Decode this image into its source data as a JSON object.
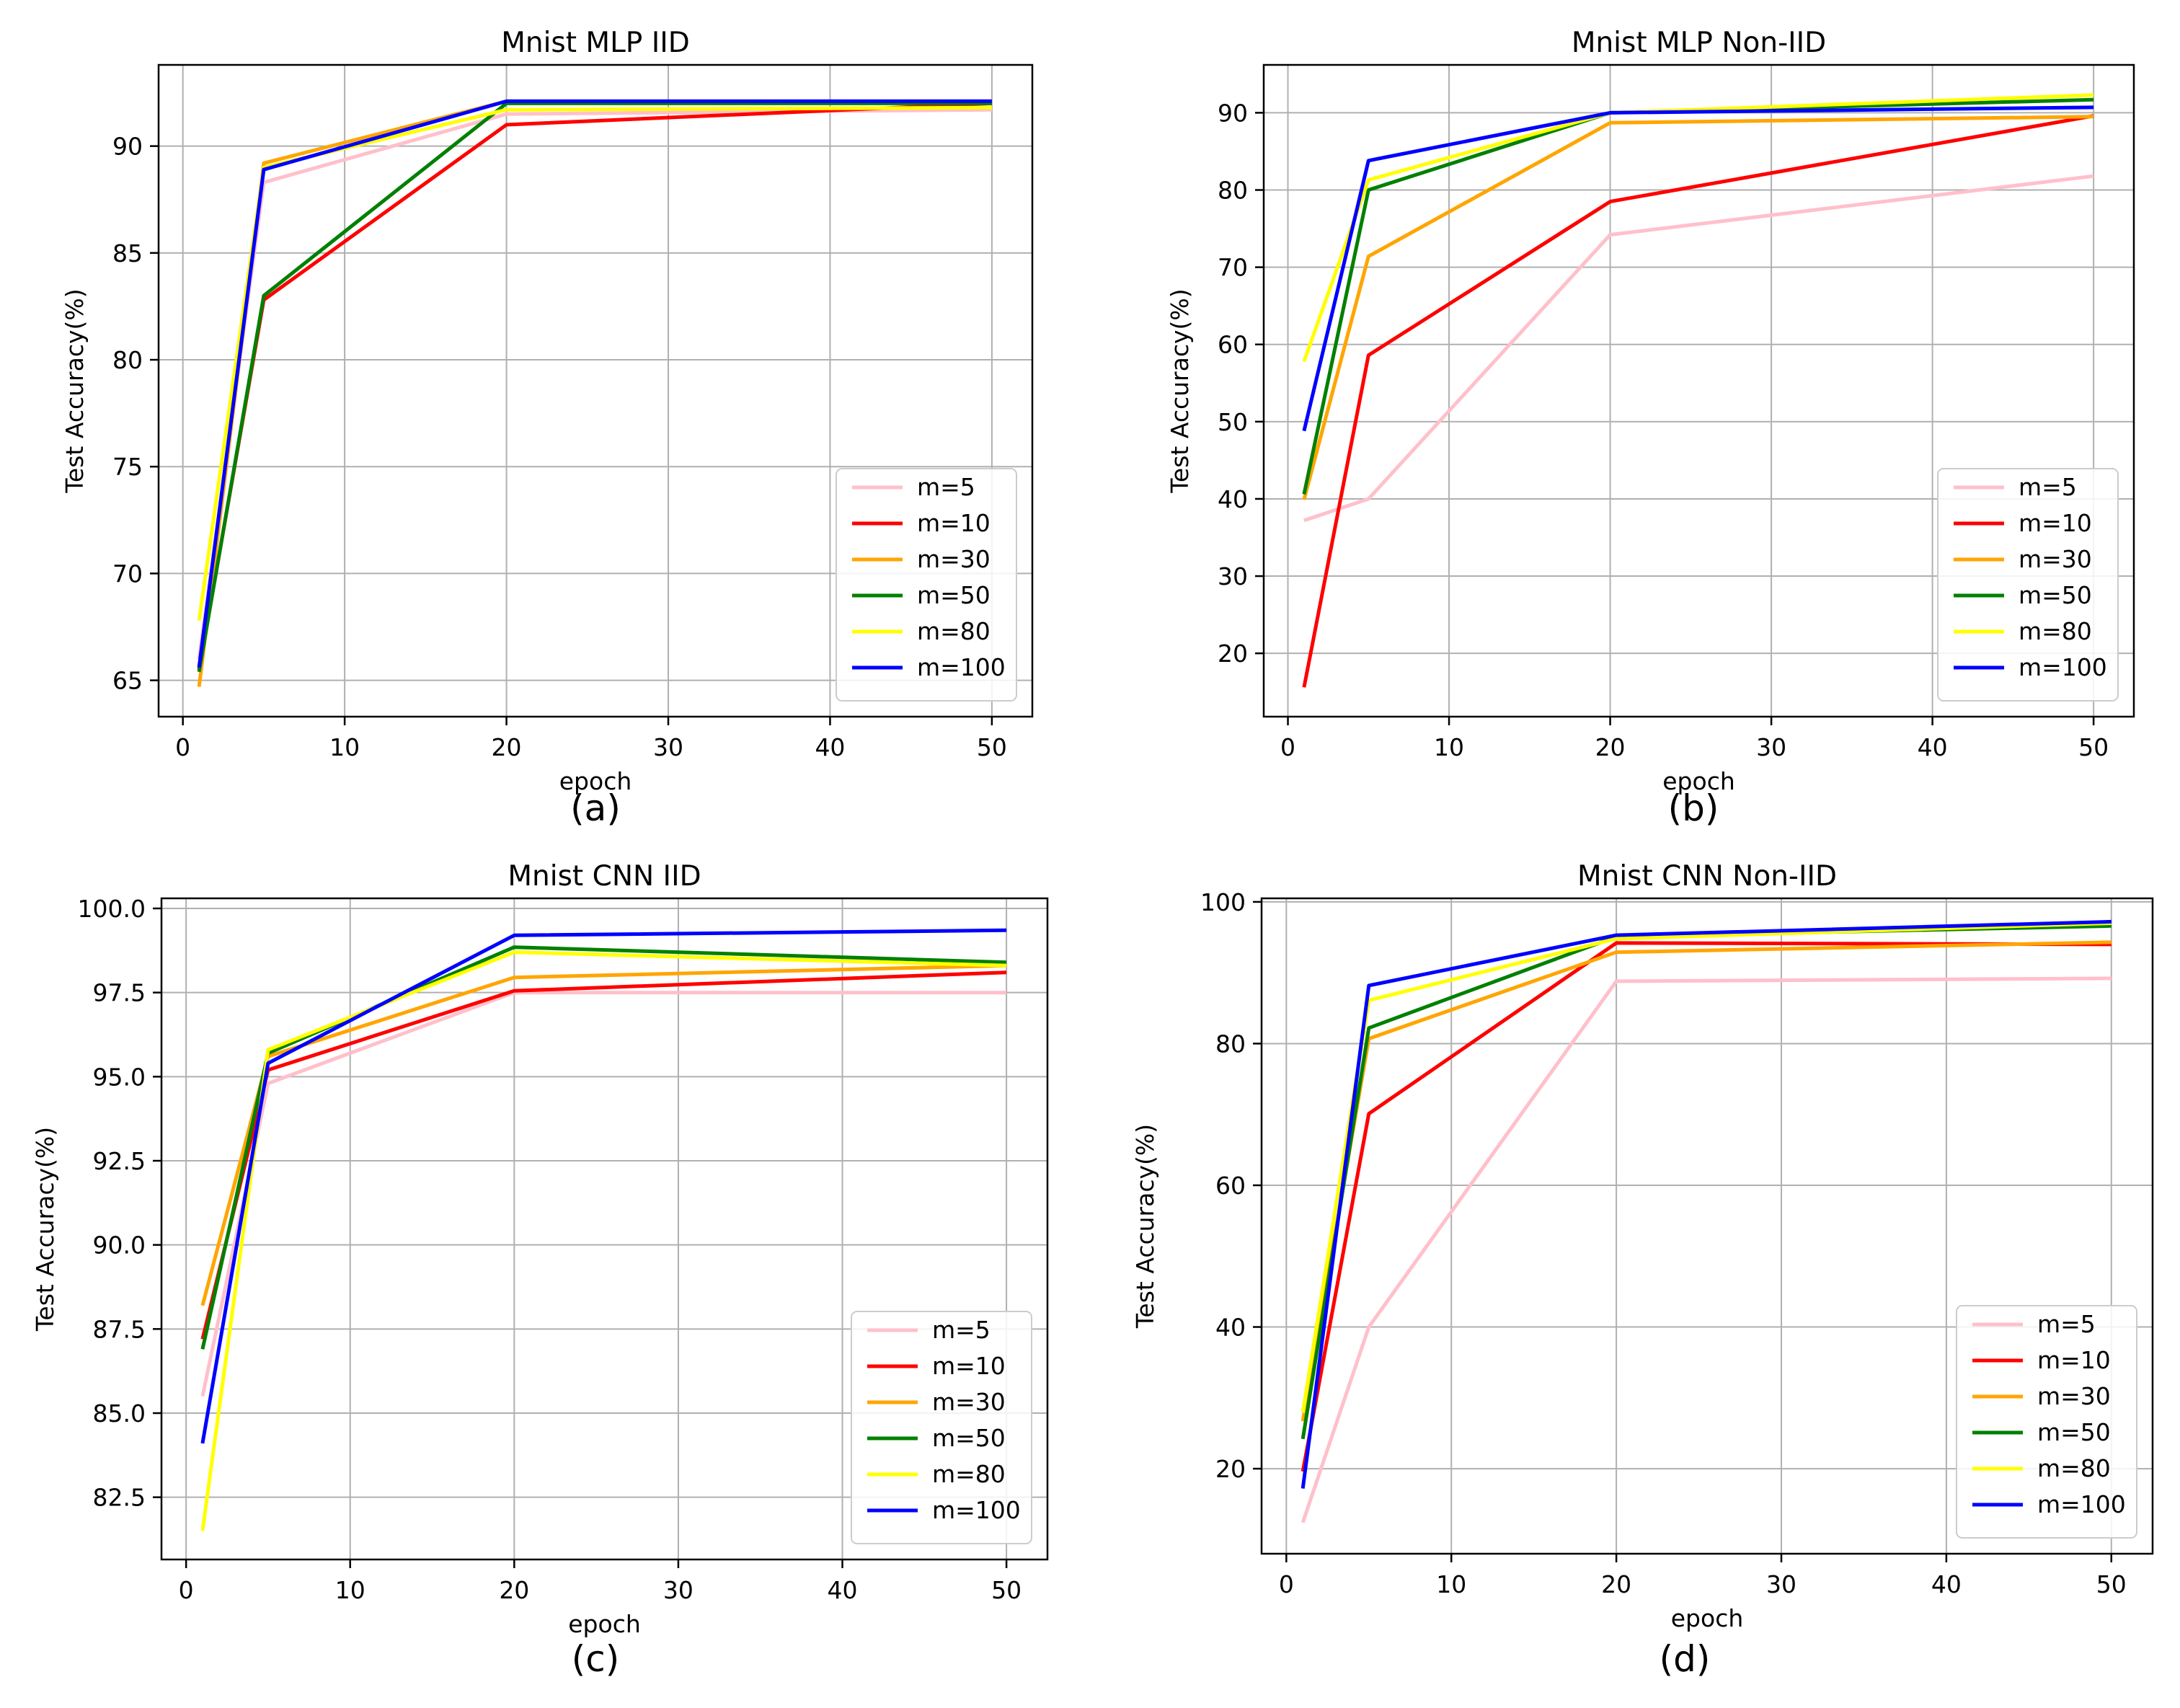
{
  "figure": {
    "colors": {
      "m=5": "#ffc0cb",
      "m=10": "#ff0000",
      "m=30": "#ffa500",
      "m=50": "#008000",
      "m=80": "#ffff00",
      "m=100": "#0000ff"
    }
  },
  "chart_data": [
    {
      "type": "line",
      "title": "Mnist MLP IID",
      "caption": "(a)",
      "xlabel": "epoch",
      "ylabel": "Test Accuracy(%)",
      "x": [
        1,
        5,
        20,
        50
      ],
      "xlim": [
        -1.5,
        52.5
      ],
      "ylim": [
        63.3,
        93.8
      ],
      "xticks": [
        0,
        10,
        20,
        30,
        40,
        50
      ],
      "xtick_labels": [
        "0",
        "10",
        "20",
        "30",
        "40",
        "50"
      ],
      "yticks": [
        65,
        70,
        75,
        80,
        85,
        90
      ],
      "ytick_labels": [
        "65",
        "70",
        "75",
        "80",
        "85",
        "90"
      ],
      "grid": true,
      "legend_position": "bottom-right",
      "series": [
        {
          "name": "m=5",
          "values": [
            66.0,
            88.3,
            91.5,
            91.7
          ]
        },
        {
          "name": "m=10",
          "values": [
            65.5,
            82.8,
            91.0,
            92.0
          ]
        },
        {
          "name": "m=30",
          "values": [
            64.7,
            89.2,
            92.1,
            92.1
          ]
        },
        {
          "name": "m=50",
          "values": [
            65.4,
            83.0,
            92.0,
            92.0
          ]
        },
        {
          "name": "m=80",
          "values": [
            67.8,
            89.0,
            91.7,
            91.8
          ]
        },
        {
          "name": "m=100",
          "values": [
            65.6,
            88.9,
            92.1,
            92.1
          ]
        }
      ]
    },
    {
      "type": "line",
      "title": "Mnist MLP Non-IID",
      "caption": "(b)",
      "xlabel": "epoch",
      "ylabel": "Test Accuracy(%)",
      "x": [
        1,
        5,
        20,
        50
      ],
      "xlim": [
        -1.5,
        52.5
      ],
      "ylim": [
        11.8,
        96.2
      ],
      "xticks": [
        0,
        10,
        20,
        30,
        40,
        50
      ],
      "xtick_labels": [
        "0",
        "10",
        "20",
        "30",
        "40",
        "50"
      ],
      "yticks": [
        20,
        30,
        40,
        50,
        60,
        70,
        80,
        90
      ],
      "ytick_labels": [
        "20",
        "30",
        "40",
        "50",
        "60",
        "70",
        "80",
        "90"
      ],
      "grid": true,
      "legend_position": "bottom-right",
      "series": [
        {
          "name": "m=5",
          "values": [
            37.2,
            40.0,
            74.2,
            81.8
          ]
        },
        {
          "name": "m=10",
          "values": [
            15.6,
            58.6,
            78.5,
            89.6
          ]
        },
        {
          "name": "m=30",
          "values": [
            39.9,
            71.4,
            88.7,
            89.5
          ]
        },
        {
          "name": "m=50",
          "values": [
            40.6,
            80.0,
            90.0,
            91.7
          ]
        },
        {
          "name": "m=80",
          "values": [
            57.8,
            81.3,
            90.0,
            92.3
          ]
        },
        {
          "name": "m=100",
          "values": [
            48.8,
            83.8,
            90.0,
            90.7
          ]
        }
      ]
    },
    {
      "type": "line",
      "title": "Mnist CNN IID",
      "caption": "(c)",
      "xlabel": "epoch",
      "ylabel": "Test Accuracy(%)",
      "x": [
        1,
        5,
        20,
        50
      ],
      "xlim": [
        -1.5,
        52.5
      ],
      "ylim": [
        80.65,
        100.3
      ],
      "xticks": [
        0,
        10,
        20,
        30,
        40,
        50
      ],
      "xtick_labels": [
        "0",
        "10",
        "20",
        "30",
        "40",
        "50"
      ],
      "yticks": [
        82.5,
        85.0,
        87.5,
        90.0,
        92.5,
        95.0,
        97.5,
        100.0
      ],
      "ytick_labels": [
        "82.5",
        "85.0",
        "87.5",
        "90.0",
        "92.5",
        "95.0",
        "97.5",
        "100.0"
      ],
      "grid": true,
      "legend_position": "bottom-right",
      "series": [
        {
          "name": "m=5",
          "values": [
            85.5,
            94.8,
            97.5,
            97.5
          ]
        },
        {
          "name": "m=10",
          "values": [
            87.2,
            95.2,
            97.55,
            98.1
          ]
        },
        {
          "name": "m=30",
          "values": [
            88.2,
            95.6,
            97.95,
            98.3
          ]
        },
        {
          "name": "m=50",
          "values": [
            86.9,
            95.7,
            98.85,
            98.4
          ]
        },
        {
          "name": "m=80",
          "values": [
            81.5,
            95.8,
            98.7,
            98.3
          ]
        },
        {
          "name": "m=100",
          "values": [
            84.1,
            95.4,
            99.2,
            99.35
          ]
        }
      ]
    },
    {
      "type": "line",
      "title": "Mnist CNN Non-IID",
      "caption": "(d)",
      "xlabel": "epoch",
      "ylabel": "Test Accuracy(%)",
      "x": [
        1,
        5,
        20,
        50
      ],
      "xlim": [
        -1.5,
        52.5
      ],
      "ylim": [
        8.0,
        100.5
      ],
      "xticks": [
        0,
        10,
        20,
        30,
        40,
        50
      ],
      "xtick_labels": [
        "0",
        "10",
        "20",
        "30",
        "40",
        "50"
      ],
      "yticks": [
        20,
        40,
        60,
        80,
        100
      ],
      "ytick_labels": [
        "20",
        "40",
        "60",
        "80",
        "100"
      ],
      "grid": true,
      "legend_position": "bottom-right",
      "series": [
        {
          "name": "m=5",
          "values": [
            12.4,
            40.0,
            88.8,
            89.2
          ]
        },
        {
          "name": "m=10",
          "values": [
            19.6,
            70.1,
            94.2,
            94.0
          ]
        },
        {
          "name": "m=30",
          "values": [
            26.7,
            80.7,
            92.9,
            94.3
          ]
        },
        {
          "name": "m=50",
          "values": [
            24.2,
            82.2,
            95.1,
            96.6
          ]
        },
        {
          "name": "m=80",
          "values": [
            27.9,
            86.1,
            94.8,
            97.0
          ]
        },
        {
          "name": "m=100",
          "values": [
            17.2,
            88.2,
            95.3,
            97.2
          ]
        }
      ]
    }
  ]
}
